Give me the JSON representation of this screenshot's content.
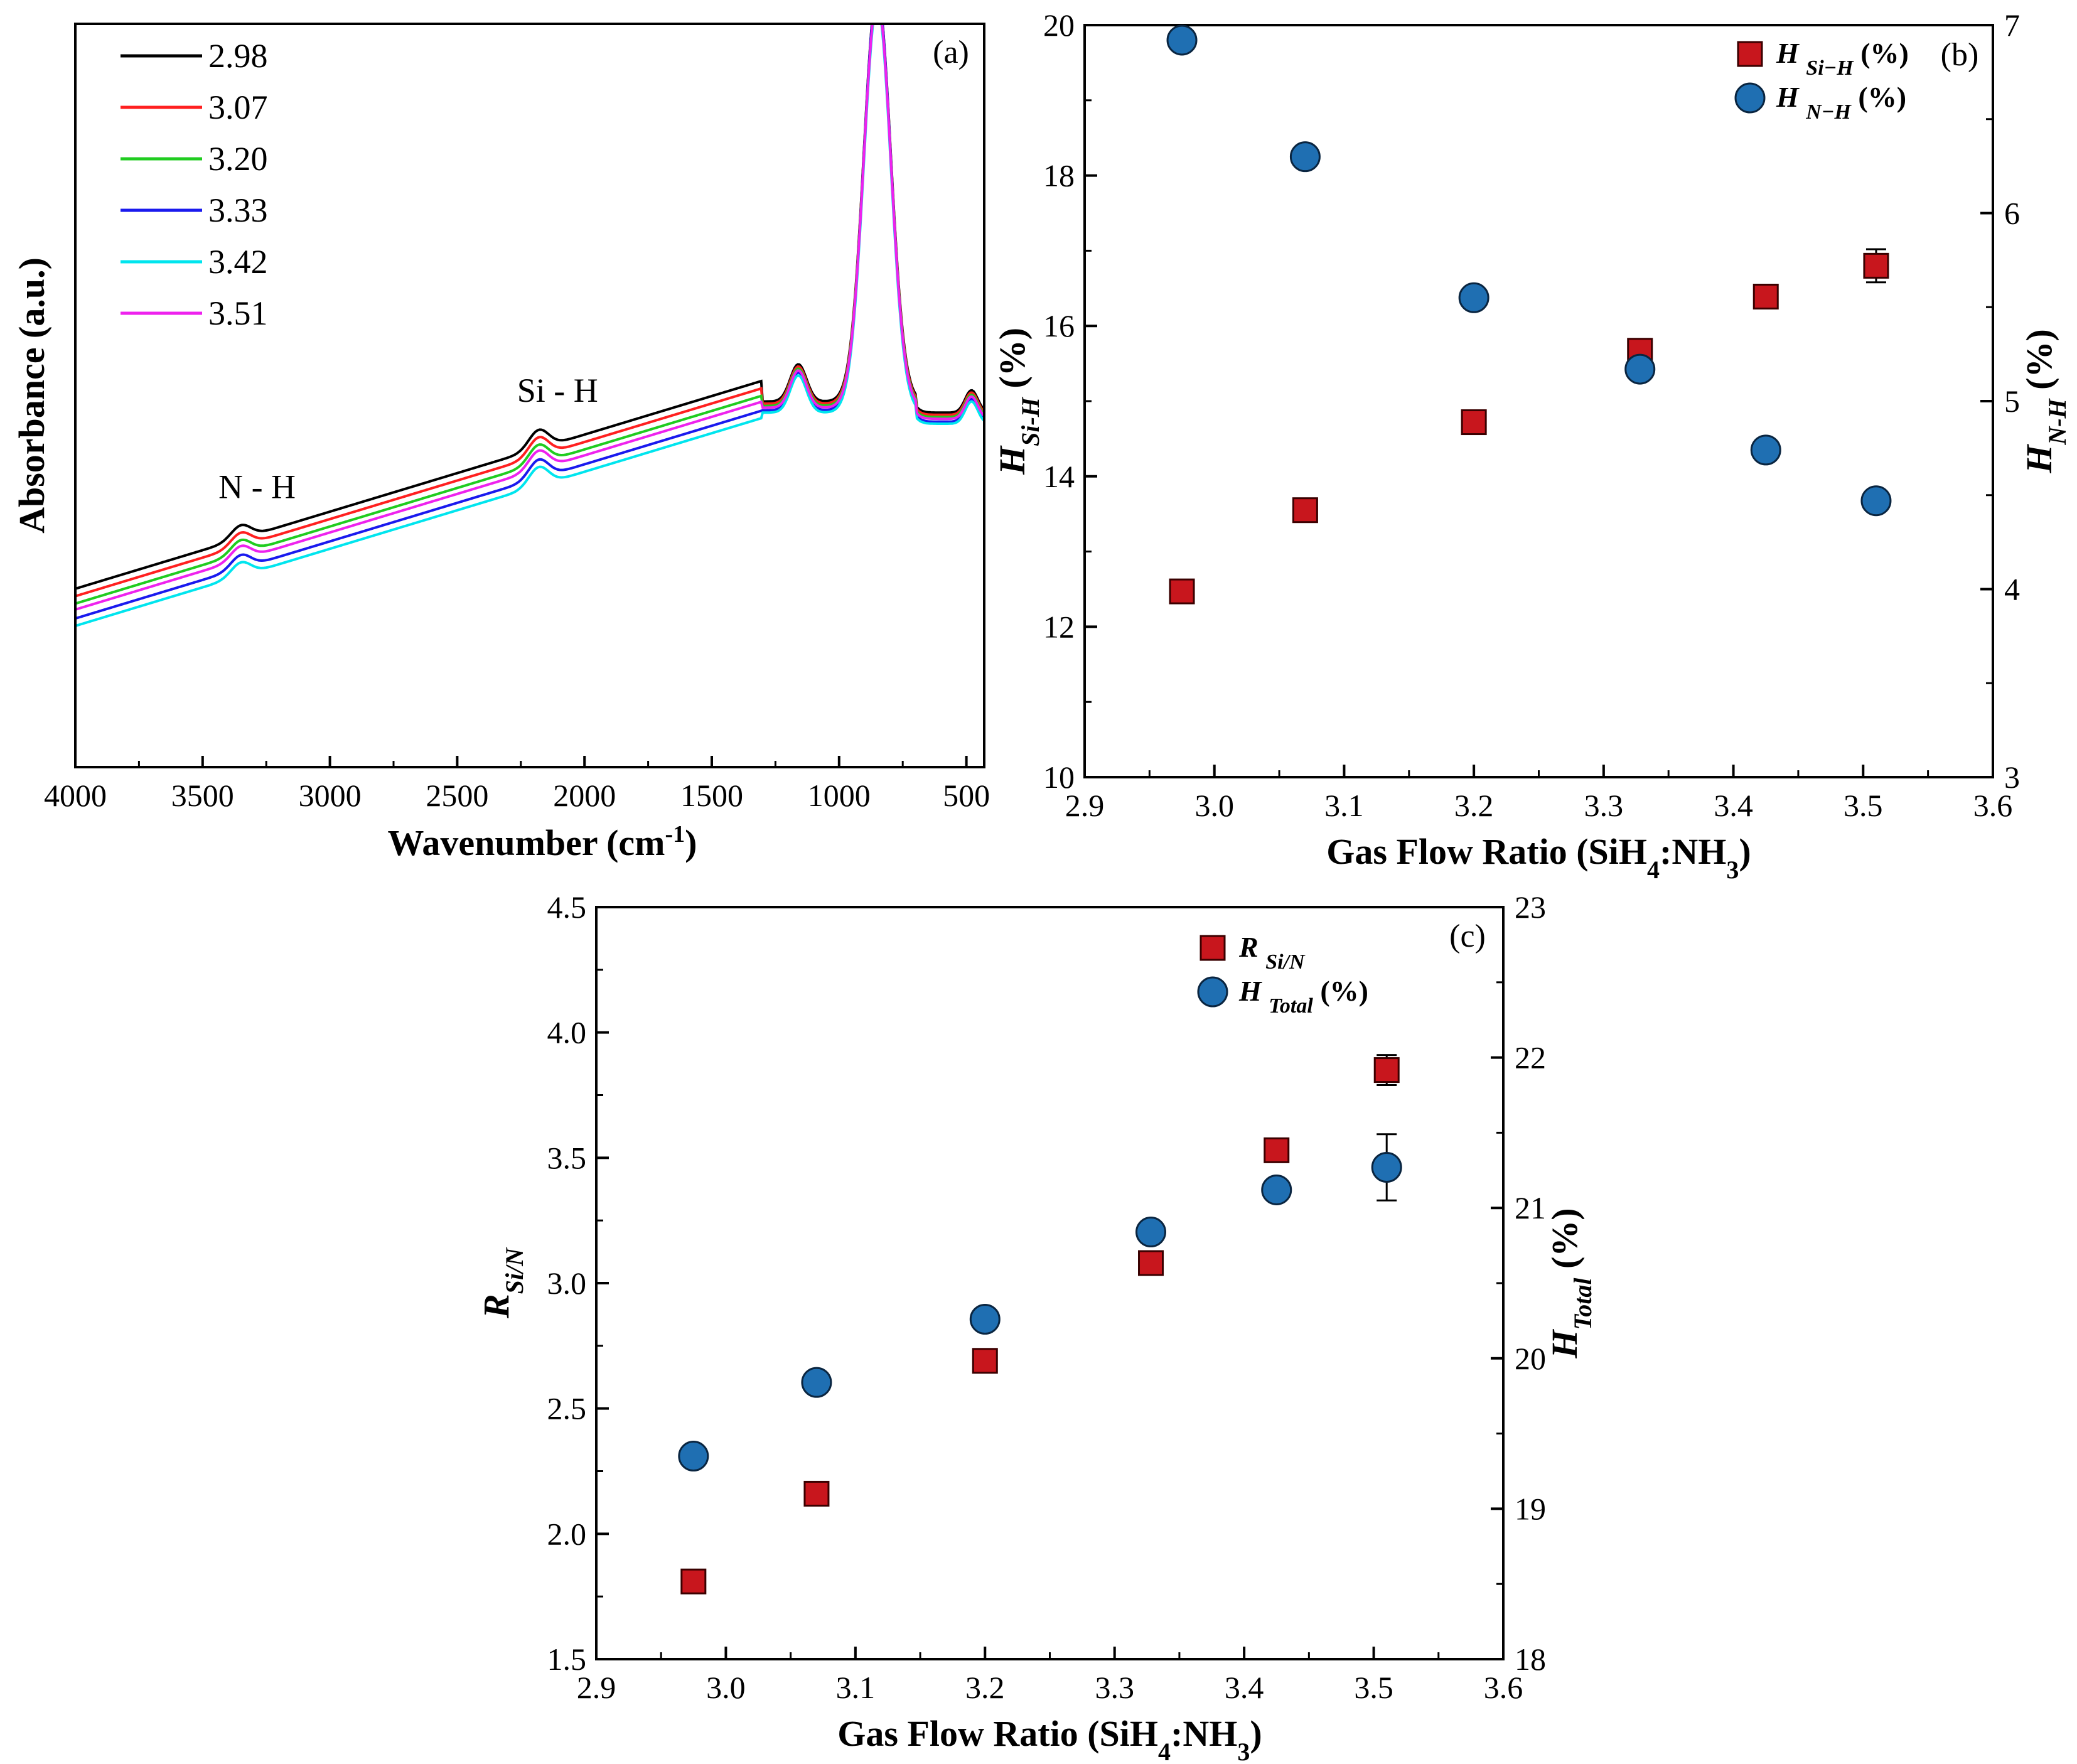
{
  "chart_data": [
    {
      "panel": "(a)",
      "type": "line",
      "xlabel_main": "Wavenumber (cm",
      "xlabel_sup": "-1",
      "xlabel_end": ")",
      "ylabel": "Absorbance (a.u.)",
      "xlim": [
        4000,
        430
      ],
      "xticks": [
        4000,
        3500,
        3000,
        2500,
        2000,
        1500,
        1000,
        500
      ],
      "y_ticks_shown": false,
      "annotations": [
        {
          "text": "N - H",
          "x": 3360
        },
        {
          "text": "Si - H",
          "x": 2180
        }
      ],
      "series": [
        {
          "name": "2.98",
          "color": "#000000",
          "offset": 0.04
        },
        {
          "name": "3.07",
          "color": "#ff2020",
          "offset": 0.03
        },
        {
          "name": "3.20",
          "color": "#20cc20",
          "offset": 0.02
        },
        {
          "name": "3.33",
          "color": "#1a1aee",
          "offset": 0.0
        },
        {
          "name": "3.42",
          "color": "#00e5ee",
          "offset": -0.01
        },
        {
          "name": "3.51",
          "color": "#ee22ee",
          "offset": 0.012
        }
      ]
    },
    {
      "panel": "(b)",
      "type": "scatter",
      "xlabel": "Gas Flow Ratio (SiH",
      "xlabel_sub1": "4",
      "xlabel_mid": ":NH",
      "xlabel_sub2": "3",
      "xlabel_end": ")",
      "ylabel_left": {
        "base": "H",
        "sub": "Si-H",
        "unit": " (%)"
      },
      "ylabel_right": {
        "base": "H",
        "sub": "N-H",
        "unit": " (%)"
      },
      "xlim": [
        2.9,
        3.6
      ],
      "xticks": [
        "2.9",
        "3.0",
        "3.1",
        "3.2",
        "3.3",
        "3.4",
        "3.5",
        "3.6"
      ],
      "ylim_left": [
        10,
        20
      ],
      "yticks_left": [
        "10",
        "12",
        "14",
        "16",
        "18",
        "20"
      ],
      "ylim_right": [
        3,
        7
      ],
      "yticks_right": [
        "3",
        "4",
        "5",
        "6",
        "7"
      ],
      "x": [
        2.975,
        3.07,
        3.2,
        3.328,
        3.425,
        3.51
      ],
      "series": [
        {
          "name": "H Si−H (%)",
          "legend_base": "H",
          "legend_sub": "Si−H",
          "legend_unit": " (%)",
          "axis": "left",
          "marker": "square",
          "color": "#c8161d",
          "values": [
            12.47,
            13.55,
            14.72,
            15.67,
            16.39,
            16.8
          ],
          "err": [
            0,
            0,
            0,
            0,
            0,
            0.22
          ]
        },
        {
          "name": "H N−H (%)",
          "legend_base": "H",
          "legend_sub": "N−H",
          "legend_unit": " (%)",
          "axis": "right",
          "marker": "circle",
          "color": "#1f6fb2",
          "values": [
            6.92,
            6.3,
            5.55,
            5.17,
            4.74,
            4.47
          ],
          "err": [
            0,
            0,
            0,
            0,
            0,
            0
          ]
        }
      ]
    },
    {
      "panel": "(c)",
      "type": "scatter",
      "xlabel": "Gas Flow Ratio (SiH",
      "xlabel_sub1": "4",
      "xlabel_mid": ":NH",
      "xlabel_sub2": "3",
      "xlabel_end": ")",
      "ylabel_left": {
        "base": "R",
        "sub": "Si/N",
        "unit": ""
      },
      "ylabel_right": {
        "base": "H",
        "sub": "Total",
        "unit": " (%)"
      },
      "xlim": [
        2.9,
        3.6
      ],
      "xticks": [
        "2.9",
        "3.0",
        "3.1",
        "3.2",
        "3.3",
        "3.4",
        "3.5",
        "3.6"
      ],
      "ylim_left": [
        1.5,
        4.5
      ],
      "yticks_left": [
        "1.5",
        "2.0",
        "2.5",
        "3.0",
        "3.5",
        "4.0",
        "4.5"
      ],
      "ylim_right": [
        18,
        23
      ],
      "yticks_right": [
        "18",
        "19",
        "20",
        "21",
        "22",
        "23"
      ],
      "x": [
        2.975,
        3.07,
        3.2,
        3.328,
        3.425,
        3.51
      ],
      "series": [
        {
          "name": "R Si/N",
          "legend_base": "R",
          "legend_sub": "Si/N",
          "legend_unit": "",
          "axis": "left",
          "marker": "square",
          "color": "#c8161d",
          "values": [
            1.81,
            2.16,
            2.69,
            3.08,
            3.53,
            3.85
          ],
          "err": [
            0,
            0,
            0,
            0,
            0,
            0.06
          ]
        },
        {
          "name": "H Total (%)",
          "legend_base": "H",
          "legend_sub": "Total",
          "legend_unit": " (%)",
          "axis": "right",
          "marker": "circle",
          "color": "#1f6fb2",
          "values": [
            19.35,
            19.84,
            20.26,
            20.84,
            21.12,
            21.27
          ],
          "err": [
            0,
            0,
            0,
            0,
            0,
            0.22
          ]
        }
      ]
    }
  ]
}
